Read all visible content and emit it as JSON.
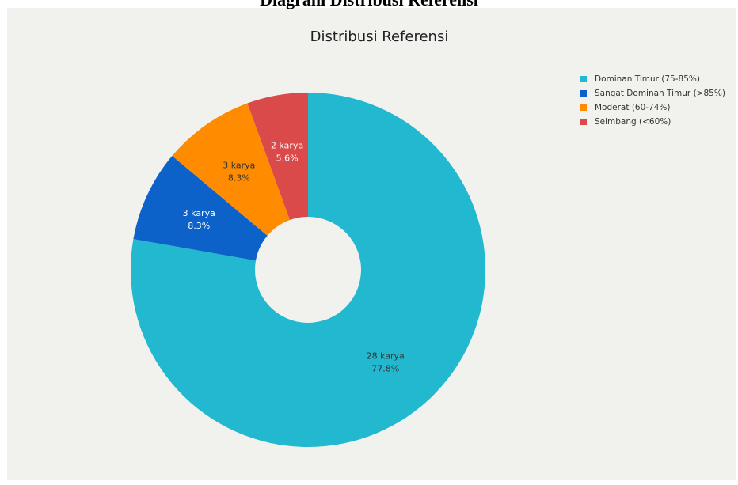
{
  "heading": "Diagram Distribusi Referensi",
  "chart_data": {
    "type": "pie",
    "title": "Distribusi Referensi",
    "legend_position": "top-right",
    "hole": true,
    "series": [
      {
        "name": "Dominan Timur (75-85%)",
        "value": 28,
        "count_label": "28 karya",
        "percent_label": "77.8%",
        "color": "#22b8cf",
        "label_color": "#333333"
      },
      {
        "name": "Sangat Dominan Timur (>85%)",
        "value": 3,
        "count_label": "3 karya",
        "percent_label": "8.3%",
        "color": "#0d62c9",
        "label_color": "#ffffff"
      },
      {
        "name": "Moderat (60-74%)",
        "value": 3,
        "count_label": "3 karya",
        "percent_label": "8.3%",
        "color": "#ff8c00",
        "label_color": "#333333"
      },
      {
        "name": "Seimbang (<60%)",
        "value": 2,
        "count_label": "2 karya",
        "percent_label": "5.6%",
        "color": "#db4a4a",
        "label_color": "#ffffff"
      }
    ]
  }
}
